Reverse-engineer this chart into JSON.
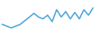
{
  "values": [
    22,
    20,
    18,
    20,
    22,
    26,
    30,
    34,
    30,
    28,
    32,
    25,
    38,
    30,
    36,
    28,
    35,
    28,
    38,
    32,
    40
  ],
  "line_color": "#4da6d9",
  "linewidth": 1.2,
  "background_color": "#ffffff",
  "ylim_min": 10,
  "ylim_max": 48
}
